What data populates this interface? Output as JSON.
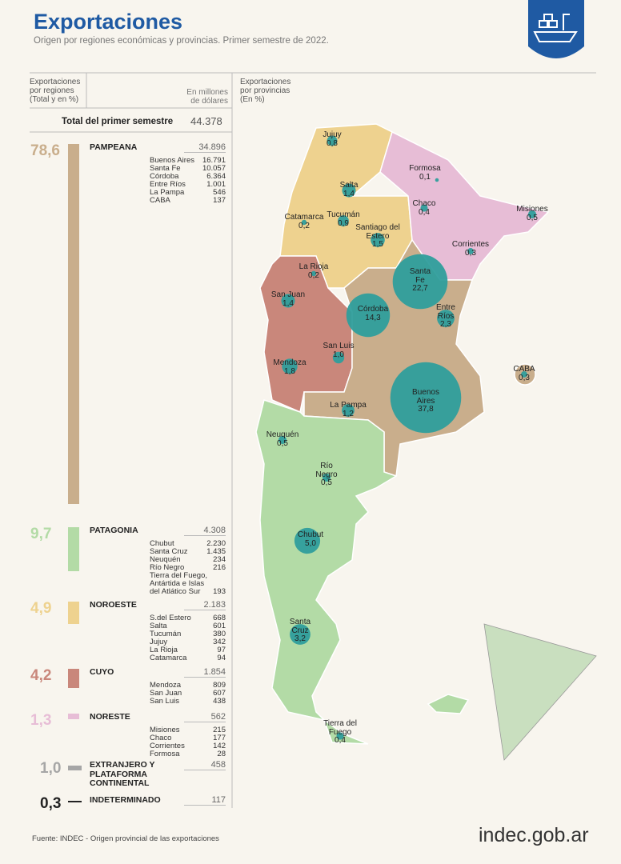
{
  "header": {
    "title": "Exportaciones",
    "subtitle": "Origen por regiones económicas y provincias. Primer semestre de 2022."
  },
  "columns": {
    "regions": "Exportaciones por regiones (Total y en %)",
    "units": "En millones de dólares",
    "provinces": "Exportaciones por provincias (En %)"
  },
  "total": {
    "label": "Total del primer semestre",
    "value": "44.378"
  },
  "regions": [
    {
      "name": "PAMPEANA",
      "share": {
        "value": 78.6,
        "label": "78,6"
      },
      "color": "#c9ae8c",
      "total": "34.896",
      "provinces": [
        {
          "name": "Buenos Aires",
          "value": "16.791"
        },
        {
          "name": "Santa Fe",
          "value": "10.057"
        },
        {
          "name": "Córdoba",
          "value": "6.364"
        },
        {
          "name": "Entre Ríos",
          "value": "1.001"
        },
        {
          "name": "La Pampa",
          "value": "546"
        },
        {
          "name": "CABA",
          "value": "137"
        }
      ]
    },
    {
      "name": "PATAGONIA",
      "share": {
        "value": 9.7,
        "label": "9,7"
      },
      "color": "#b3dba6",
      "total": "4.308",
      "provinces": [
        {
          "name": "Chubut",
          "value": "2.230"
        },
        {
          "name": "Santa Cruz",
          "value": "1.435"
        },
        {
          "name": "Neuquén",
          "value": "234"
        },
        {
          "name": "Río Negro",
          "value": "216"
        },
        {
          "name": "Tierra del Fuego, Antártida e Islas del Atlático Sur",
          "value": "193"
        }
      ]
    },
    {
      "name": "NOROESTE",
      "share": {
        "value": 4.9,
        "label": "4,9"
      },
      "color": "#eed28f",
      "total": "2.183",
      "provinces": [
        {
          "name": "S.del Estero",
          "value": "668"
        },
        {
          "name": "Salta",
          "value": "601"
        },
        {
          "name": "Tucumán",
          "value": "380"
        },
        {
          "name": "Jujuy",
          "value": "342"
        },
        {
          "name": "La Rioja",
          "value": "97"
        },
        {
          "name": "Catamarca",
          "value": "94"
        }
      ]
    },
    {
      "name": "CUYO",
      "share": {
        "value": 4.2,
        "label": "4,2"
      },
      "color": "#c9877b",
      "total": "1.854",
      "provinces": [
        {
          "name": "Mendoza",
          "value": "809"
        },
        {
          "name": "San Juan",
          "value": "607"
        },
        {
          "name": "San Luis",
          "value": "438"
        }
      ]
    },
    {
      "name": "NORESTE",
      "share": {
        "value": 1.3,
        "label": "1,3"
      },
      "color": "#e7bdd6",
      "total": "562",
      "provinces": [
        {
          "name": "Misiones",
          "value": "215"
        },
        {
          "name": "Chaco",
          "value": "177"
        },
        {
          "name": "Corrientes",
          "value": "142"
        },
        {
          "name": "Formosa",
          "value": "28"
        }
      ]
    },
    {
      "name": "EXTRANJERO Y PLATAFORMA CONTINENTAL",
      "share": {
        "value": 1.0,
        "label": "1,0"
      },
      "color": "#a6a6a6",
      "total": "458",
      "provinces": []
    },
    {
      "name": "INDETERMINADO",
      "share": {
        "value": 0.3,
        "label": "0,3"
      },
      "color": "#222222",
      "total": "117",
      "provinces": []
    }
  ],
  "map": {
    "bubble_color": "#2f9e9c",
    "provinces": [
      {
        "name": "Jujuy",
        "share": {
          "value": 0.8,
          "label": "0,8"
        }
      },
      {
        "name": "Formosa",
        "share": {
          "value": 0.1,
          "label": "0,1"
        }
      },
      {
        "name": "Salta",
        "share": {
          "value": 1.4,
          "label": "1,4"
        }
      },
      {
        "name": "Misiones",
        "share": {
          "value": 0.5,
          "label": "0,5"
        }
      },
      {
        "name": "Chaco",
        "share": {
          "value": 0.4,
          "label": "0,4"
        }
      },
      {
        "name": "Catamarca",
        "share": {
          "value": 0.2,
          "label": "0,2"
        }
      },
      {
        "name": "Tucumán",
        "share": {
          "value": 0.9,
          "label": "0,9"
        }
      },
      {
        "name": "Santiago del Estero",
        "share": {
          "value": 1.5,
          "label": "1,5"
        }
      },
      {
        "name": "Corrientes",
        "share": {
          "value": 0.3,
          "label": "0,3"
        }
      },
      {
        "name": "La Rioja",
        "share": {
          "value": 0.2,
          "label": "0,2"
        }
      },
      {
        "name": "Santa Fe",
        "share": {
          "value": 22.7,
          "label": "22,7"
        }
      },
      {
        "name": "San Juan",
        "share": {
          "value": 1.4,
          "label": "1,4"
        }
      },
      {
        "name": "Córdoba",
        "share": {
          "value": 14.3,
          "label": "14,3"
        }
      },
      {
        "name": "Entre Ríos",
        "share": {
          "value": 2.3,
          "label": "2,3"
        }
      },
      {
        "name": "San Luis",
        "share": {
          "value": 1.0,
          "label": "1,0"
        }
      },
      {
        "name": "Mendoza",
        "share": {
          "value": 1.8,
          "label": "1,8"
        }
      },
      {
        "name": "CABA",
        "share": {
          "value": 0.3,
          "label": "0,3"
        }
      },
      {
        "name": "Buenos Aires",
        "share": {
          "value": 37.8,
          "label": "37,8"
        }
      },
      {
        "name": "La Pampa",
        "share": {
          "value": 1.2,
          "label": "1,2"
        }
      },
      {
        "name": "Neuquén",
        "share": {
          "value": 0.5,
          "label": "0,5"
        }
      },
      {
        "name": "Río Negro",
        "share": {
          "value": 0.5,
          "label": "0,5"
        }
      },
      {
        "name": "Chubut",
        "share": {
          "value": 5.0,
          "label": "5,0"
        }
      },
      {
        "name": "Santa Cruz",
        "share": {
          "value": 3.2,
          "label": "3,2"
        }
      },
      {
        "name": "Tierra del Fuego",
        "share": {
          "value": 0.4,
          "label": "0,4"
        }
      }
    ]
  },
  "source": "Fuente: INDEC - Origen provincial de las exportaciones",
  "logo": "indec.gob.ar"
}
